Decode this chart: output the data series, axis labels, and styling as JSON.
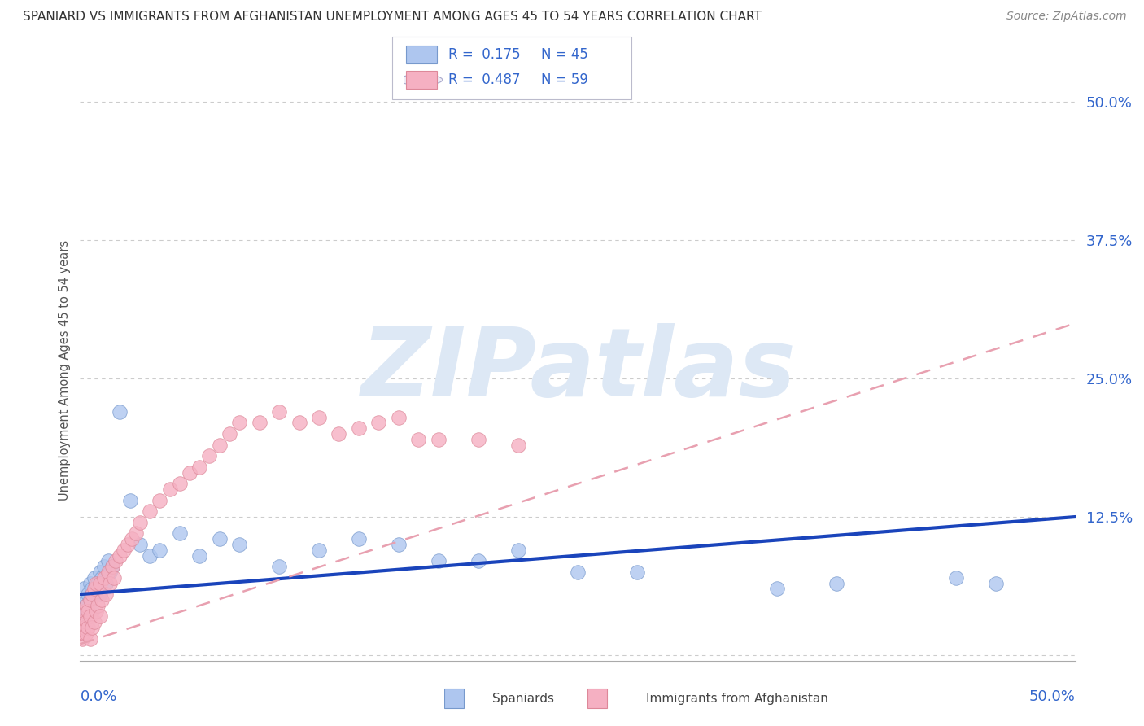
{
  "title": "SPANIARD VS IMMIGRANTS FROM AFGHANISTAN UNEMPLOYMENT AMONG AGES 45 TO 54 YEARS CORRELATION CHART",
  "source": "Source: ZipAtlas.com",
  "ylabel": "Unemployment Among Ages 45 to 54 years",
  "xlim": [
    0,
    0.5
  ],
  "ylim": [
    -0.005,
    0.52
  ],
  "ytick_values": [
    0.0,
    0.125,
    0.25,
    0.375,
    0.5
  ],
  "ytick_labels": [
    "",
    "12.5%",
    "25.0%",
    "37.5%",
    "50.0%"
  ],
  "xtick_left": "0.0%",
  "xtick_right": "50.0%",
  "spaniards_color": "#aec6ef",
  "spaniards_edge": "#7799cc",
  "afghanistan_color": "#f5b0c2",
  "afghanistan_edge": "#dd8899",
  "blue_trend_color": "#1a44bb",
  "pink_trend_color": "#e8a0b0",
  "grid_color": "#cccccc",
  "axis_tick_color": "#3366cc",
  "title_color": "#333333",
  "source_color": "#888888",
  "watermark_color": "#dde8f5",
  "watermark_text": "ZIPatlas",
  "legend_R1": "0.175",
  "legend_N1": "45",
  "legend_R2": "0.487",
  "legend_N2": "59",
  "legend_label1": "Spaniards",
  "legend_label2": "Immigrants from Afghanistan",
  "blue_line_start_y": 0.055,
  "blue_line_end_y": 0.125,
  "pink_line_start_y": 0.01,
  "pink_line_end_y": 0.3,
  "sp_points_x": [
    0.001,
    0.002,
    0.002,
    0.003,
    0.003,
    0.004,
    0.004,
    0.005,
    0.005,
    0.006,
    0.006,
    0.007,
    0.007,
    0.008,
    0.009,
    0.01,
    0.01,
    0.011,
    0.012,
    0.013,
    0.014,
    0.015,
    0.016,
    0.02,
    0.025,
    0.03,
    0.035,
    0.04,
    0.05,
    0.06,
    0.07,
    0.08,
    0.1,
    0.12,
    0.14,
    0.16,
    0.18,
    0.2,
    0.22,
    0.25,
    0.28,
    0.35,
    0.38,
    0.44,
    0.46
  ],
  "sp_points_y": [
    0.04,
    0.035,
    0.06,
    0.05,
    0.045,
    0.055,
    0.04,
    0.065,
    0.05,
    0.06,
    0.04,
    0.055,
    0.07,
    0.06,
    0.065,
    0.075,
    0.055,
    0.07,
    0.08,
    0.065,
    0.085,
    0.075,
    0.08,
    0.22,
    0.14,
    0.1,
    0.09,
    0.095,
    0.11,
    0.09,
    0.105,
    0.1,
    0.08,
    0.095,
    0.105,
    0.1,
    0.085,
    0.085,
    0.095,
    0.075,
    0.075,
    0.06,
    0.065,
    0.07,
    0.065
  ],
  "af_points_x": [
    0.001,
    0.001,
    0.001,
    0.002,
    0.002,
    0.002,
    0.003,
    0.003,
    0.003,
    0.004,
    0.004,
    0.005,
    0.005,
    0.005,
    0.006,
    0.006,
    0.007,
    0.007,
    0.008,
    0.008,
    0.009,
    0.01,
    0.01,
    0.011,
    0.012,
    0.013,
    0.014,
    0.015,
    0.016,
    0.017,
    0.018,
    0.02,
    0.022,
    0.024,
    0.026,
    0.028,
    0.03,
    0.035,
    0.04,
    0.045,
    0.05,
    0.055,
    0.06,
    0.065,
    0.07,
    0.075,
    0.08,
    0.09,
    0.1,
    0.11,
    0.12,
    0.13,
    0.14,
    0.15,
    0.16,
    0.17,
    0.18,
    0.2,
    0.22
  ],
  "af_points_y": [
    0.015,
    0.02,
    0.03,
    0.02,
    0.025,
    0.04,
    0.02,
    0.03,
    0.045,
    0.025,
    0.04,
    0.015,
    0.035,
    0.05,
    0.025,
    0.055,
    0.03,
    0.06,
    0.04,
    0.065,
    0.045,
    0.035,
    0.065,
    0.05,
    0.07,
    0.055,
    0.075,
    0.065,
    0.08,
    0.07,
    0.085,
    0.09,
    0.095,
    0.1,
    0.105,
    0.11,
    0.12,
    0.13,
    0.14,
    0.15,
    0.155,
    0.165,
    0.17,
    0.18,
    0.19,
    0.2,
    0.21,
    0.21,
    0.22,
    0.21,
    0.215,
    0.2,
    0.205,
    0.21,
    0.215,
    0.195,
    0.195,
    0.195,
    0.19
  ]
}
